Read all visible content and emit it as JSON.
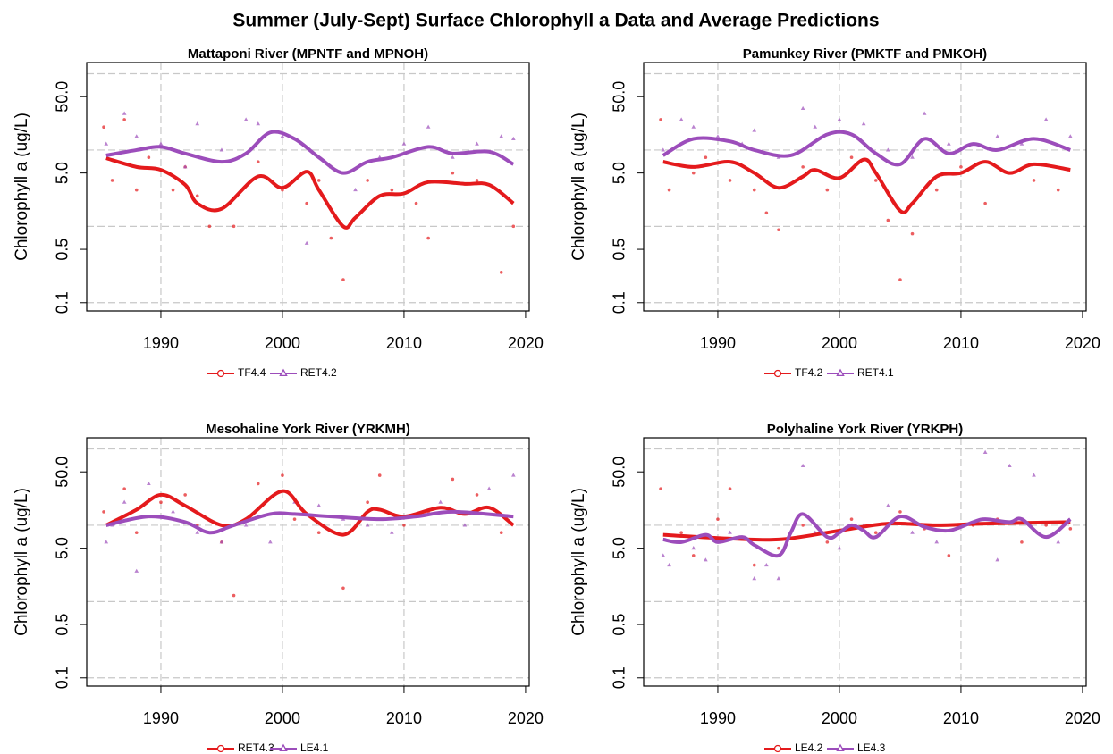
{
  "suptitle": "Summer (July-Sept) Surface Chlorophyll a Data and Average Predictions",
  "chart_data": [
    {
      "type": "line",
      "title": "Mattaponi River (MPNTF and MPNOH)",
      "ylabel": "Chlorophyll a (ug/L)",
      "log_y": true,
      "xlim": [
        1983.9,
        2020.3
      ],
      "xticks": [
        1990,
        2000,
        2010,
        2020
      ],
      "xgrid": [
        1990,
        2000,
        2010
      ],
      "ylim": [
        0.078,
        140
      ],
      "yticks": [
        0.1,
        0.5,
        {
          "value": 5,
          "label": "5.0"
        },
        {
          "value": 50,
          "label": "50.0"
        }
      ],
      "ygrid": [
        0.1,
        1,
        10,
        100
      ],
      "series": [
        {
          "name": "TF4.4",
          "color": "#e41a1c",
          "marker": "circle",
          "x": [
            1985.5,
            1988,
            1990,
            1992,
            1993,
            1995,
            1998,
            2000,
            2002,
            2003,
            2005,
            2006,
            2008,
            2010,
            2012,
            2015,
            2017,
            2019
          ],
          "values": [
            7.8,
            6,
            5.5,
            3.5,
            2,
            1.7,
            4.5,
            3.2,
            5.2,
            3,
            1,
            1.3,
            2.5,
            2.7,
            3.8,
            3.6,
            3.5,
            2
          ],
          "points_x": [
            1985.3,
            1986,
            1987,
            1988,
            1989,
            1991,
            1992,
            1993,
            1994,
            1996,
            1998,
            2000,
            2002,
            2003,
            2004,
            2005,
            2007,
            2009,
            2011,
            2012,
            2014,
            2016,
            2018,
            2019
          ],
          "points_y": [
            20,
            4,
            25,
            3,
            8,
            3,
            6,
            2.5,
            1,
            1,
            7,
            3,
            2,
            4,
            0.7,
            0.2,
            4,
            3,
            2,
            0.7,
            5,
            4,
            0.25,
            1
          ]
        },
        {
          "name": "RET4.2",
          "color": "#9c4dbb",
          "marker": "triangle",
          "x": [
            1985.5,
            1988,
            1990,
            1992,
            1995,
            1997,
            1999,
            2001,
            2003,
            2005,
            2007,
            2009,
            2012,
            2014,
            2017,
            2019
          ],
          "values": [
            8.5,
            10,
            11,
            9,
            7,
            9,
            17,
            14,
            8,
            5,
            7,
            8,
            11,
            9,
            9.5,
            6.5
          ],
          "points_x": [
            1985.5,
            1987,
            1988,
            1990,
            1992,
            1993,
            1995,
            1997,
            1998,
            2000,
            2002,
            2004,
            2006,
            2008,
            2010,
            2012,
            2014,
            2016,
            2018,
            2019
          ],
          "points_y": [
            12,
            30,
            15,
            12,
            6,
            22,
            10,
            25,
            22,
            15,
            0.6,
            6,
            3,
            8,
            12,
            20,
            8,
            12,
            15,
            14
          ]
        }
      ]
    },
    {
      "type": "line",
      "title": "Pamunkey River (PMKTF and PMKOH)",
      "ylabel": "Chlorophyll a (ug/L)",
      "log_y": true,
      "xlim": [
        1983.9,
        2020.3
      ],
      "xticks": [
        1990,
        2000,
        2010,
        2020
      ],
      "xgrid": [
        1990,
        2000,
        2010
      ],
      "ylim": [
        0.078,
        140
      ],
      "yticks": [
        0.1,
        0.5,
        {
          "value": 5,
          "label": "5.0"
        },
        {
          "value": 50,
          "label": "50.0"
        }
      ],
      "ygrid": [
        0.1,
        1,
        10,
        100
      ],
      "series": [
        {
          "name": "TF4.2",
          "color": "#e41a1c",
          "marker": "circle",
          "x": [
            1985.5,
            1988,
            1991,
            1993,
            1995,
            1997,
            1998,
            2000,
            2002,
            2003,
            2005,
            2006,
            2008,
            2010,
            2012,
            2014,
            2016,
            2019
          ],
          "values": [
            7,
            6,
            7,
            5,
            3.2,
            4.5,
            5.5,
            4.3,
            7.5,
            5,
            1.6,
            2,
            4.5,
            5,
            7,
            5,
            6.5,
            5.5
          ],
          "points_x": [
            1985.3,
            1986,
            1988,
            1989,
            1991,
            1993,
            1994,
            1995,
            1997,
            1999,
            2001,
            2003,
            2004,
            2005,
            2006,
            2008,
            2010,
            2012,
            2014,
            2016,
            2018
          ],
          "points_y": [
            25,
            3,
            5,
            8,
            4,
            3,
            1.5,
            0.9,
            6,
            3,
            8,
            4,
            1.2,
            0.2,
            0.8,
            3,
            6,
            2,
            5,
            4,
            3
          ]
        },
        {
          "name": "RET4.1",
          "color": "#9c4dbb",
          "marker": "triangle",
          "x": [
            1985.5,
            1988,
            1991,
            1993,
            1996,
            1999,
            2001,
            2003,
            2005,
            2007,
            2009,
            2011,
            2013,
            2016,
            2019
          ],
          "values": [
            8.5,
            14,
            13,
            10,
            8.5,
            16,
            16,
            9,
            6.5,
            14,
            9,
            12,
            10,
            14,
            10
          ],
          "points_x": [
            1985.5,
            1987,
            1988,
            1990,
            1992,
            1993,
            1995,
            1997,
            1998,
            2000,
            2002,
            2004,
            2006,
            2007,
            2009,
            2011,
            2013,
            2015,
            2017,
            2019
          ],
          "points_y": [
            10,
            25,
            20,
            15,
            12,
            18,
            8,
            35,
            20,
            25,
            22,
            10,
            8,
            30,
            12,
            6,
            15,
            12,
            25,
            15
          ]
        }
      ]
    },
    {
      "type": "line",
      "title": "Mesohaline York River (YRKMH)",
      "ylabel": "Chlorophyll a (ug/L)",
      "log_y": true,
      "xlim": [
        1983.9,
        2020.3
      ],
      "xticks": [
        1990,
        2000,
        2010,
        2020
      ],
      "xgrid": [
        1990,
        2000,
        2010
      ],
      "ylim": [
        0.078,
        140
      ],
      "yticks": [
        0.1,
        0.5,
        {
          "value": 5,
          "label": "5.0"
        },
        {
          "value": 50,
          "label": "50.0"
        }
      ],
      "ygrid": [
        0.1,
        1,
        10,
        100
      ],
      "series": [
        {
          "name": "RET4.3",
          "color": "#e41a1c",
          "marker": "circle",
          "x": [
            1985.5,
            1988,
            1990,
            1992,
            1995,
            1997,
            2000,
            2002,
            2005,
            2007,
            2008,
            2010,
            2013,
            2015,
            2017,
            2019
          ],
          "values": [
            10,
            16,
            25,
            18,
            10,
            12,
            28,
            14,
            7.5,
            15,
            16,
            13,
            17,
            14,
            17,
            10
          ],
          "points_x": [
            1985.3,
            1987,
            1988,
            1990,
            1992,
            1993,
            1995,
            1996,
            1998,
            2000,
            2001,
            2003,
            2005,
            2007,
            2008,
            2010,
            2012,
            2014,
            2016,
            2018
          ],
          "points_y": [
            15,
            30,
            8,
            20,
            25,
            10,
            6,
            1.2,
            35,
            45,
            12,
            8,
            1.5,
            20,
            45,
            10,
            15,
            40,
            25,
            8
          ]
        },
        {
          "name": "LE4.1",
          "color": "#9c4dbb",
          "marker": "triangle",
          "x": [
            1985.5,
            1989,
            1992,
            1994,
            1996,
            1999,
            2001,
            2004,
            2008,
            2011,
            2014,
            2019
          ],
          "values": [
            10,
            13,
            11,
            8,
            10,
            14,
            14,
            13,
            12,
            13,
            15,
            13
          ],
          "points_x": [
            1985.5,
            1986,
            1987,
            1988,
            1989,
            1991,
            1993,
            1995,
            1997,
            1999,
            2001,
            2003,
            2005,
            2007,
            2009,
            2011,
            2013,
            2015,
            2017,
            2019
          ],
          "points_y": [
            6,
            10,
            20,
            2.5,
            35,
            15,
            8,
            6,
            10,
            6,
            20,
            18,
            12,
            10,
            8,
            14,
            20,
            10,
            30,
            45
          ]
        }
      ]
    },
    {
      "type": "line",
      "title": "Polyhaline York River (YRKPH)",
      "ylabel": "Chlorophyll a (ug/L)",
      "log_y": true,
      "xlim": [
        1983.9,
        2020.3
      ],
      "xticks": [
        1990,
        2000,
        2010,
        2020
      ],
      "xgrid": [
        1990,
        2000,
        2010
      ],
      "ylim": [
        0.078,
        140
      ],
      "yticks": [
        0.1,
        0.5,
        {
          "value": 5,
          "label": "5.0"
        },
        {
          "value": 50,
          "label": "50.0"
        }
      ],
      "ygrid": [
        0.1,
        1,
        10,
        100
      ],
      "series": [
        {
          "name": "LE4.2",
          "color": "#e41a1c",
          "marker": "circle",
          "x": [
            1985.5,
            1990,
            1995,
            2000,
            2004,
            2008,
            2012,
            2019
          ],
          "values": [
            7.5,
            6.8,
            6.5,
            8.5,
            10.5,
            10,
            10.5,
            11
          ],
          "points_x": [
            1985.3,
            1987,
            1988,
            1990,
            1991,
            1993,
            1995,
            1997,
            1999,
            2001,
            2003,
            2005,
            2007,
            2009,
            2011,
            2013,
            2015,
            2017,
            2019
          ],
          "points_y": [
            30,
            8,
            4,
            12,
            30,
            3,
            5,
            10,
            6,
            12,
            8,
            15,
            9,
            4,
            10,
            12,
            6,
            10,
            9
          ]
        },
        {
          "name": "LE4.3",
          "color": "#9c4dbb",
          "marker": "triangle",
          "x": [
            1985.5,
            1987,
            1989,
            1990,
            1992,
            1993,
            1995,
            1996,
            1997,
            1999,
            2000,
            2001,
            2002,
            2003,
            2005,
            2007,
            2009,
            2011,
            2012,
            2014,
            2015,
            2017,
            2019
          ],
          "values": [
            6.5,
            6,
            7.5,
            6,
            7,
            5.5,
            4,
            8,
            14,
            7,
            8,
            10,
            8.5,
            7,
            13,
            9.5,
            8.5,
            11,
            12,
            11,
            12,
            7,
            12
          ],
          "points_x": [
            1985.5,
            1986,
            1988,
            1989,
            1991,
            1993,
            1994,
            1995,
            1997,
            1998,
            2000,
            2002,
            2004,
            2006,
            2008,
            2010,
            2012,
            2013,
            2014,
            2016,
            2018
          ],
          "points_y": [
            4,
            3,
            5,
            3.5,
            8,
            2,
            3,
            2,
            60,
            8,
            5,
            10,
            18,
            8,
            6,
            10,
            90,
            3.5,
            60,
            45,
            6
          ]
        }
      ]
    }
  ]
}
